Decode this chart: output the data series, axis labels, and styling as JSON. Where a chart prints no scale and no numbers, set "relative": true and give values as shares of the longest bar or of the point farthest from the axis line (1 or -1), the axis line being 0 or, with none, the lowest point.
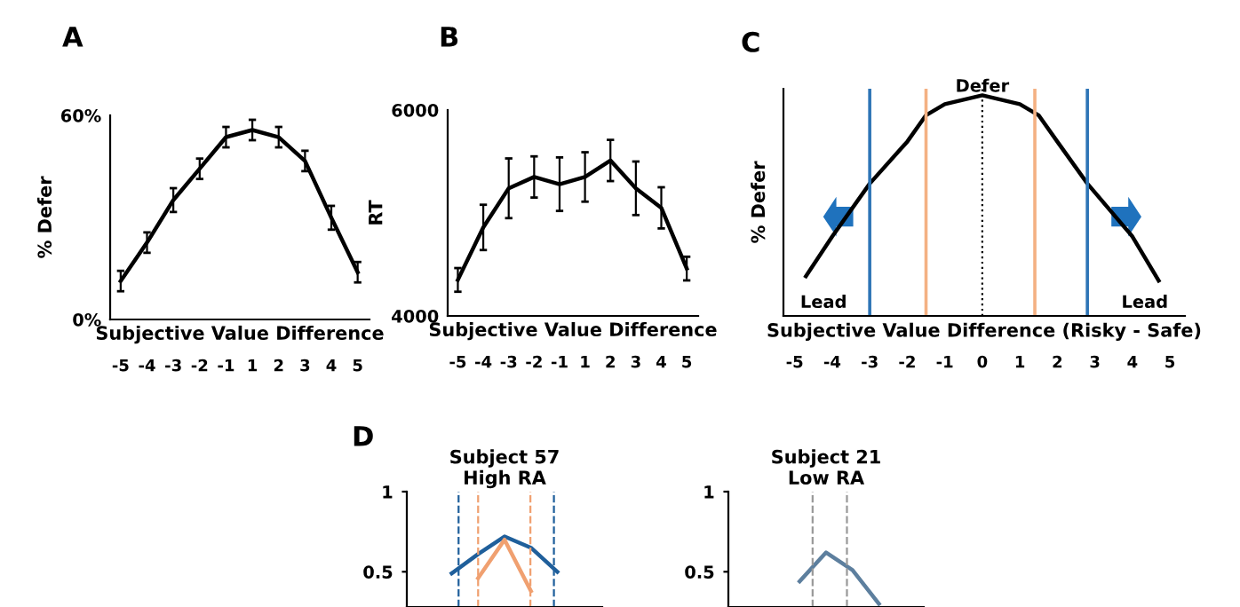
{
  "chart_data": [
    {
      "type": "line",
      "title": "A",
      "categories": [
        "-5",
        "-4",
        "-3",
        "-2",
        "-1",
        "1",
        "2",
        "3",
        "4",
        "5"
      ],
      "xlabel": "Subjective Value Difference",
      "ylabel": "% Defer",
      "ylim": [
        0,
        60
      ],
      "yticks": [
        {
          "value": 0,
          "label": "0%"
        },
        {
          "value": 60,
          "label": "60%"
        }
      ],
      "series": [
        {
          "color": "#000000",
          "values": [
            11.3,
            22.6,
            35.1,
            44.3,
            53.6,
            55.7,
            53.6,
            46.6,
            29.9,
            13.9
          ],
          "errors": [
            3,
            3,
            3.5,
            3,
            3,
            3,
            3,
            3,
            3.5,
            3
          ]
        }
      ]
    },
    {
      "type": "line",
      "title": "B",
      "categories": [
        "-5",
        "-4",
        "-3",
        "-2",
        "-1",
        "1",
        "2",
        "3",
        "4",
        "5"
      ],
      "xlabel": "Subjective Value Difference",
      "ylabel": "RT",
      "ylim": [
        4000,
        6000
      ],
      "yticks": [
        4000,
        6000
      ],
      "series": [
        {
          "color": "#000000",
          "values": [
            4350,
            4860,
            5240,
            5350,
            5280,
            5350,
            5510,
            5240,
            5050,
            4460
          ],
          "errors": [
            115,
            220,
            290,
            200,
            260,
            240,
            200,
            260,
            200,
            115
          ]
        }
      ]
    },
    {
      "type": "line",
      "relative": true,
      "title": "C",
      "xlabel": "Subjective Value Difference (Risky - Safe)",
      "ylabel": "% Defer",
      "xlim": [
        -5.3,
        5.4
      ],
      "xticks": [
        -5,
        -4,
        -3,
        -2,
        -1,
        0,
        1,
        2,
        3,
        4,
        5
      ],
      "tick_labels": "x",
      "series": [
        {
          "color": "#000000",
          "x": [
            -4.7,
            -4,
            -3,
            -2,
            -1.5,
            -1,
            0,
            1,
            1.5,
            2,
            2.8,
            4,
            4.7
          ],
          "values": [
            0.18,
            0.36,
            0.6,
            0.79,
            0.91,
            0.96,
            1,
            0.96,
            0.91,
            0.79,
            0.6,
            0.36,
            0.16
          ]
        }
      ],
      "ref_lines": [
        {
          "axis": "x",
          "value": -3,
          "color": "#2e75b6",
          "line_style": "solid"
        },
        {
          "axis": "x",
          "value": -1.5,
          "color": "#f4b183",
          "line_style": "solid"
        },
        {
          "axis": "x",
          "value": 0,
          "color": "#000000",
          "line_style": "dotted"
        },
        {
          "axis": "x",
          "value": 1.4,
          "color": "#f4b183",
          "line_style": "solid"
        },
        {
          "axis": "x",
          "value": 2.8,
          "color": "#2e75b6",
          "line_style": "solid"
        }
      ],
      "annotations": [
        {
          "text": "Defer",
          "x": 0,
          "y": 1
        },
        "Lead",
        "Lead"
      ]
    },
    {
      "type": "line",
      "title": "Subject 57\nHigh RA",
      "categories": [
        null,
        null,
        null,
        null,
        null,
        null,
        null
      ],
      "ylim": [
        0.28,
        1
      ],
      "yticks": [
        0.5,
        1
      ],
      "tick_labels": "y",
      "annotations": [
        "D"
      ],
      "series": [
        {
          "color": "#1f5f9b",
          "values": [
            null,
            0.49,
            0.61,
            0.72,
            0.65,
            0.5,
            null
          ]
        },
        {
          "color": "#f0a070",
          "values": [
            null,
            null,
            0.46,
            0.7,
            0.38,
            null,
            null
          ]
        }
      ]
    },
    {
      "type": "line",
      "title": "Subject 21\nLow RA",
      "categories": [
        null,
        null,
        null,
        null,
        null,
        null,
        null
      ],
      "ylim": [
        0.28,
        1
      ],
      "yticks": [
        0.5,
        1
      ],
      "tick_labels": "y",
      "series": [
        {
          "color": "#5d7f9e",
          "values": [
            null,
            null,
            0.44,
            0.62,
            0.51,
            0.3,
            null
          ]
        }
      ]
    }
  ]
}
